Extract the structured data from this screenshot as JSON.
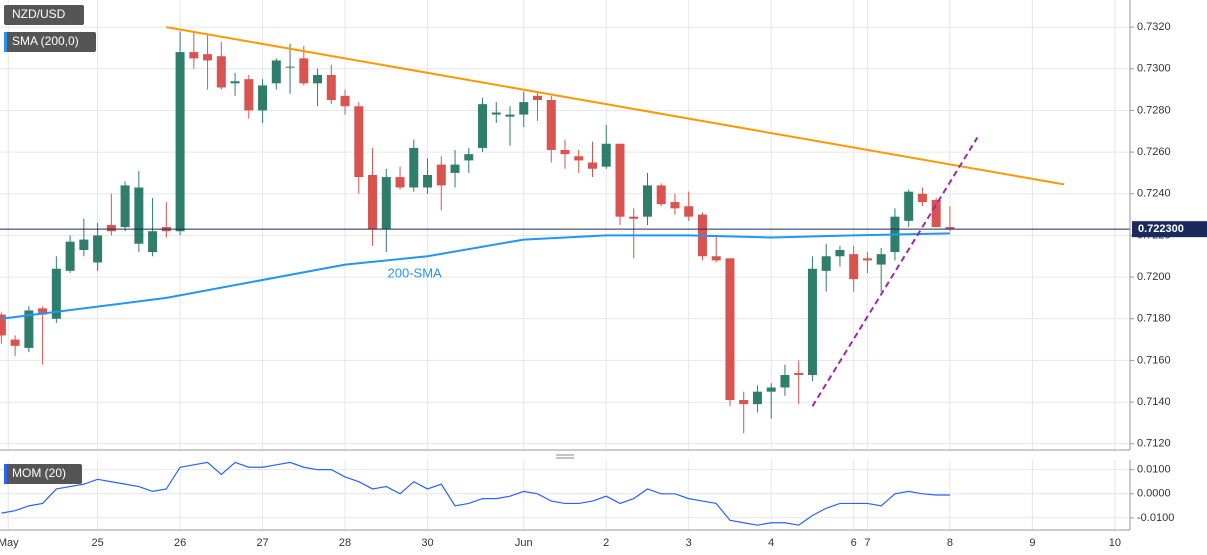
{
  "chart_data": [
    {
      "type": "candlestick",
      "title": "NZD/USD",
      "indicator": "SMA (200,0)",
      "up_color": "#2f7e6c",
      "down_color": "#d9534f",
      "open": [
        0.7182,
        0.717,
        0.7166,
        0.7185,
        0.718,
        0.7203,
        0.7213,
        0.7207,
        0.7225,
        0.7224,
        0.7216,
        0.7212,
        0.7224,
        0.7222,
        0.7308,
        0.7307,
        0.7306,
        0.7293,
        0.7295,
        0.728,
        0.7293,
        0.7301,
        0.7305,
        0.7293,
        0.7297,
        0.7287,
        0.7282,
        0.7249,
        0.7223,
        0.7248,
        0.7243,
        0.7243,
        0.7254,
        0.725,
        0.7256,
        0.7262,
        0.7278,
        0.7277,
        0.7278,
        0.7287,
        0.7285,
        0.7261,
        0.7258,
        0.7255,
        0.7253,
        0.7264,
        0.7229,
        0.7229,
        0.7244,
        0.7236,
        0.7234,
        0.723,
        0.721,
        0.7209,
        0.7141,
        0.7139,
        0.7145,
        0.7147,
        0.7154,
        0.7153,
        0.7203,
        0.721,
        0.7211,
        0.7209,
        0.7206,
        0.7212,
        0.7227,
        0.724,
        0.7237,
        0.7224
      ],
      "high": [
        0.7183,
        0.7172,
        0.7186,
        0.7186,
        0.721,
        0.722,
        0.7228,
        0.7226,
        0.724,
        0.7246,
        0.7251,
        0.7238,
        0.7236,
        0.7318,
        0.7318,
        0.7316,
        0.7313,
        0.7298,
        0.7297,
        0.7295,
        0.7305,
        0.7312,
        0.7311,
        0.73,
        0.7302,
        0.729,
        0.7284,
        0.7262,
        0.7252,
        0.7253,
        0.7266,
        0.7257,
        0.7258,
        0.7261,
        0.7262,
        0.7286,
        0.7284,
        0.7282,
        0.7289,
        0.7289,
        0.7287,
        0.7266,
        0.7261,
        0.7265,
        0.7273,
        0.7264,
        0.7233,
        0.725,
        0.7245,
        0.724,
        0.7241,
        0.7231,
        0.722,
        0.7209,
        0.7145,
        0.7148,
        0.7149,
        0.7158,
        0.716,
        0.721,
        0.7216,
        0.7215,
        0.7215,
        0.7212,
        0.7214,
        0.7233,
        0.7242,
        0.7243,
        0.7238,
        0.7234
      ],
      "low": [
        0.7168,
        0.7162,
        0.7164,
        0.7158,
        0.7178,
        0.7202,
        0.721,
        0.7203,
        0.722,
        0.7222,
        0.7212,
        0.721,
        0.7219,
        0.722,
        0.73,
        0.729,
        0.729,
        0.7287,
        0.7276,
        0.7274,
        0.729,
        0.7288,
        0.7292,
        0.7282,
        0.7283,
        0.7278,
        0.724,
        0.7215,
        0.7212,
        0.7242,
        0.7241,
        0.724,
        0.7232,
        0.7243,
        0.725,
        0.726,
        0.7274,
        0.7263,
        0.7272,
        0.7275,
        0.7255,
        0.7252,
        0.725,
        0.7248,
        0.7252,
        0.7225,
        0.7209,
        0.7225,
        0.7234,
        0.723,
        0.7227,
        0.7208,
        0.7207,
        0.7138,
        0.7125,
        0.7135,
        0.7132,
        0.7143,
        0.7139,
        0.715,
        0.7193,
        0.7205,
        0.7193,
        0.7202,
        0.7193,
        0.7208,
        0.7224,
        0.7234,
        0.7224,
        0.7222
      ],
      "close": [
        0.7172,
        0.7167,
        0.7184,
        0.7182,
        0.7204,
        0.7217,
        0.7218,
        0.722,
        0.7222,
        0.7244,
        0.7243,
        0.7222,
        0.7222,
        0.7308,
        0.7305,
        0.7304,
        0.7291,
        0.7294,
        0.728,
        0.7292,
        0.7304,
        0.7301,
        0.7293,
        0.7297,
        0.7285,
        0.7282,
        0.7248,
        0.7223,
        0.7248,
        0.7243,
        0.7262,
        0.7249,
        0.7244,
        0.7254,
        0.7259,
        0.7283,
        0.7279,
        0.7278,
        0.7284,
        0.7285,
        0.7261,
        0.7259,
        0.7256,
        0.7252,
        0.7264,
        0.7229,
        0.7228,
        0.7244,
        0.7235,
        0.7233,
        0.7229,
        0.721,
        0.7208,
        0.7141,
        0.7139,
        0.7145,
        0.7147,
        0.7153,
        0.7153,
        0.7204,
        0.721,
        0.7213,
        0.7199,
        0.7208,
        0.7211,
        0.7229,
        0.7241,
        0.7236,
        0.7224,
        0.7223
      ],
      "lines": [
        {
          "name": "200-SMA",
          "color": "#2196f3",
          "x": [
            0,
            12,
            25,
            31,
            38,
            44,
            50,
            56,
            62,
            69
          ],
          "values": [
            0.718,
            0.719,
            0.7206,
            0.721,
            0.7218,
            0.722,
            0.722,
            0.7219,
            0.722,
            0.7221
          ]
        },
        {
          "color": "#ff9800",
          "x": [
            12,
            77.3
          ],
          "values": [
            0.732,
            0.72445
          ]
        },
        {
          "color": "#9c27b0",
          "dash": true,
          "x": [
            59,
            71
          ],
          "values": [
            0.7138,
            0.7267
          ]
        }
      ],
      "last_price": {
        "value": 0.7223,
        "label": "0.722300"
      },
      "xlim": [
        -0.1,
        82.1
      ],
      "ylim": [
        0.7117,
        0.7333
      ],
      "yticks": [
        {
          "value": 0.712,
          "label": "0.7120"
        },
        {
          "value": 0.714,
          "label": "0.7140"
        },
        {
          "value": 0.716,
          "label": "0.7160"
        },
        {
          "value": 0.718,
          "label": "0.7180"
        },
        {
          "value": 0.72,
          "label": "0.7200"
        },
        {
          "value": 0.722,
          "label": "0.7220"
        },
        {
          "value": 0.724,
          "label": "0.7240"
        },
        {
          "value": 0.726,
          "label": "0.7260"
        },
        {
          "value": 0.728,
          "label": "0.7280"
        },
        {
          "value": 0.73,
          "label": "0.7300"
        },
        {
          "value": 0.732,
          "label": "0.7320"
        }
      ],
      "xticks": [
        {
          "value": 0.5,
          "label": "May"
        },
        {
          "value": 7,
          "label": "25"
        },
        {
          "value": 13,
          "label": "26"
        },
        {
          "value": 19,
          "label": "27"
        },
        {
          "value": 25,
          "label": "28"
        },
        {
          "value": 31,
          "label": "30"
        },
        {
          "value": 38,
          "label": "Jun"
        },
        {
          "value": 44,
          "label": "2"
        },
        {
          "value": 50,
          "label": "3"
        },
        {
          "value": 56,
          "label": "4"
        },
        {
          "value": 62,
          "label": "6"
        },
        {
          "value": 63,
          "label": "7"
        },
        {
          "value": 69,
          "label": "8"
        },
        {
          "value": 75,
          "label": "9"
        },
        {
          "value": 81,
          "label": "10"
        }
      ],
      "grid": true
    },
    {
      "type": "line",
      "title": "MOM (20)",
      "color": "#2962ff",
      "values": [
        -0.008,
        -0.007,
        -0.005,
        -0.004,
        0.002,
        0.003,
        0.004,
        0.006,
        0.005,
        0.004,
        0.003,
        0.001,
        0.002,
        0.011,
        0.012,
        0.013,
        0.008,
        0.013,
        0.011,
        0.011,
        0.012,
        0.013,
        0.011,
        0.01,
        0.01,
        0.007,
        0.005,
        0.002,
        0.003,
        0.0,
        0.005,
        0.002,
        0.004,
        -0.005,
        -0.004,
        -0.002,
        -0.002,
        -0.001,
        0.001,
        0.0,
        -0.003,
        -0.004,
        -0.004,
        -0.003,
        -0.001,
        -0.004,
        -0.002,
        0.002,
        0.0,
        0.0,
        -0.002,
        -0.003,
        -0.004,
        -0.011,
        -0.012,
        -0.013,
        -0.012,
        -0.012,
        -0.013,
        -0.009,
        -0.006,
        -0.004,
        -0.004,
        -0.004,
        -0.005,
        0.0,
        0.001,
        0.0,
        -0.0005,
        -0.0005
      ],
      "ylim": [
        -0.015,
        0.014
      ],
      "yticks": [
        {
          "value": 0.01,
          "label": "0.0100"
        },
        {
          "value": 0,
          "label": "0.0000"
        },
        {
          "value": -0.01,
          "label": "-0.0100"
        }
      ],
      "grid": true
    }
  ]
}
